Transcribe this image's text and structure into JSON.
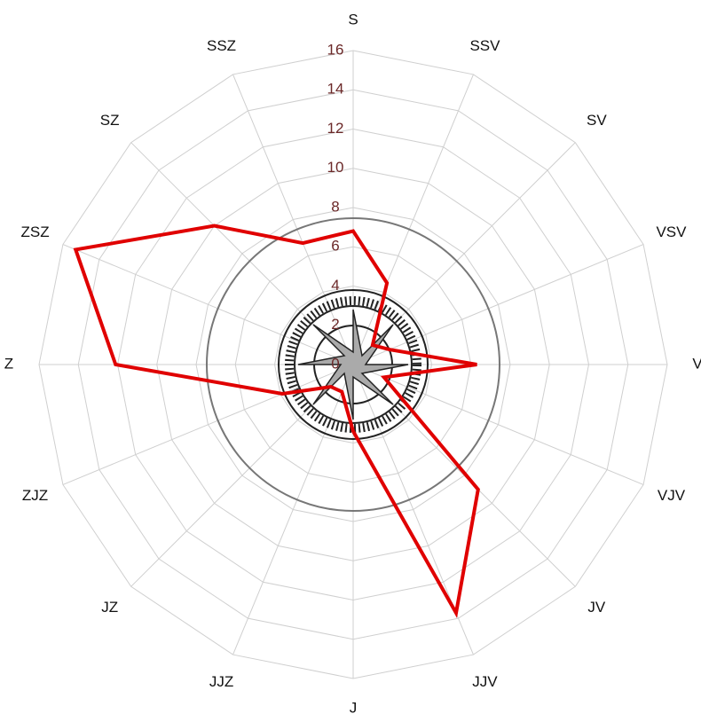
{
  "chart_data": {
    "type": "radar",
    "categories": [
      "S",
      "SSV",
      "SV",
      "VSV",
      "V",
      "VJV",
      "JV",
      "JJV",
      "J",
      "JJZ",
      "JZ",
      "ZJZ",
      "Z",
      "ZSZ",
      "SZ",
      "SSZ"
    ],
    "series": [
      {
        "color": "#e00000",
        "values": [
          6.8,
          4.5,
          1.4,
          2.0,
          6.3,
          1.7,
          9.0,
          13.7,
          3.4,
          1.5,
          1.6,
          3.9,
          12.1,
          15.3,
          10.0,
          6.7
        ]
      }
    ],
    "ylim": [
      0,
      16
    ],
    "yticks": [
      0,
      2,
      4,
      6,
      8,
      10,
      12,
      14,
      16
    ],
    "grid": true
  }
}
